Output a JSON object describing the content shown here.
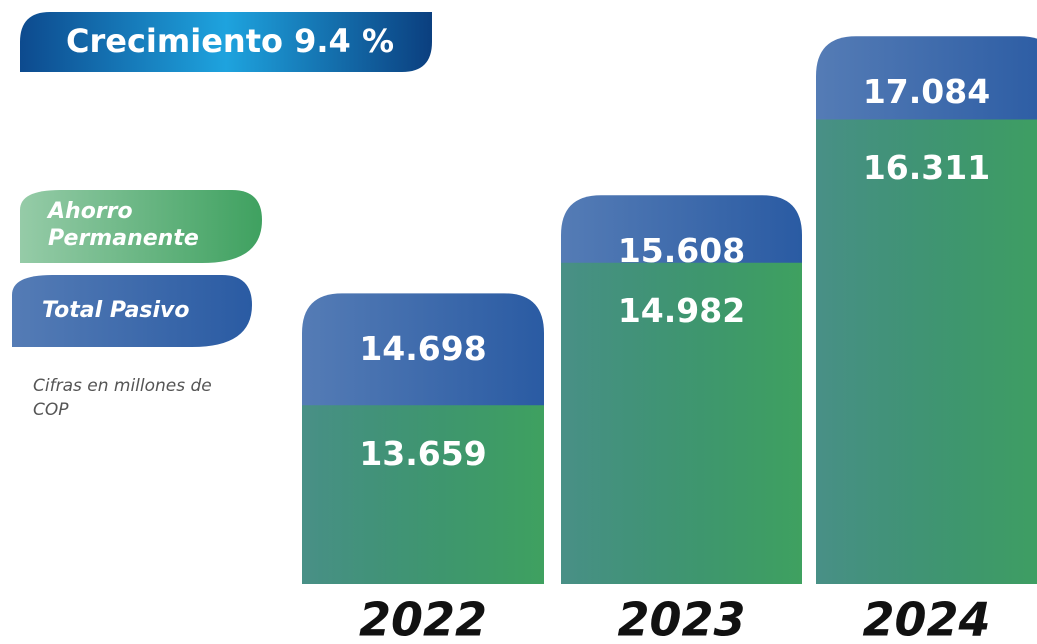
{
  "chart_data": {
    "type": "bar",
    "title": "Crecimiento 9.4 %",
    "note": "Cifras en millones de COP",
    "categories": [
      "2022",
      "2023",
      "2024"
    ],
    "series": [
      {
        "name": "Total Pasivo",
        "color": "#2a5ba3",
        "values": [
          14698,
          15608,
          17084
        ],
        "value_labels": [
          "14.698",
          "15.608",
          "17.084"
        ]
      },
      {
        "name": "Ahorro Permanente",
        "color": "#3fa160",
        "values": [
          13659,
          14982,
          16311
        ],
        "value_labels": [
          "13.659",
          "14.982",
          "16.311"
        ]
      }
    ],
    "ylim": [
      12000,
      17300
    ]
  }
}
